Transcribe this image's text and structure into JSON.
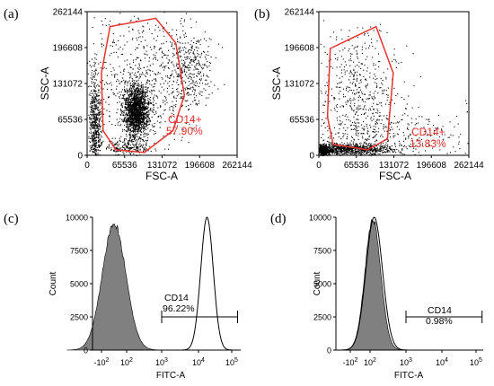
{
  "panel_labels": [
    "(a)",
    "(b)",
    "(c)",
    "(d)"
  ],
  "colors": {
    "gate": "#e8332f",
    "dots": "#000000",
    "fill": "#808080"
  },
  "chart_data": [
    {
      "type": "scatter",
      "panel": "(a)",
      "xlabel": "FSC-A",
      "ylabel": "SSC-A",
      "xlim": [
        0,
        262144
      ],
      "ylim": [
        0,
        262144
      ],
      "xticks": [
        "0",
        "65536",
        "131072",
        "196608",
        "262144"
      ],
      "yticks": [
        "0",
        "65536",
        "131072",
        "196608",
        "262144"
      ],
      "gate": {
        "name": "CD14+",
        "percent": "57.90%",
        "polygon": [
          [
            40000,
            235000
          ],
          [
            120000,
            250000
          ],
          [
            155000,
            205000
          ],
          [
            170000,
            110000
          ],
          [
            150000,
            45000
          ],
          [
            100000,
            5000
          ],
          [
            50000,
            10000
          ],
          [
            28000,
            45000
          ],
          [
            25000,
            150000
          ]
        ]
      },
      "clusters": [
        {
          "cx": 85000,
          "cy": 82000,
          "sx": 11000,
          "sy": 23000,
          "n": 1700
        },
        {
          "cx": 13000,
          "cy": 55000,
          "sx": 5000,
          "sy": 45000,
          "n": 600
        },
        {
          "cx": 175000,
          "cy": 155000,
          "sx": 20000,
          "sy": 35000,
          "n": 350
        },
        {
          "cx": 70000,
          "cy": 15000,
          "sx": 20000,
          "sy": 7000,
          "n": 200
        },
        {
          "cx": 95000,
          "cy": 140000,
          "sx": 50000,
          "sy": 70000,
          "n": 700
        }
      ]
    },
    {
      "type": "scatter",
      "panel": "(b)",
      "xlabel": "FSC-A",
      "ylabel": "SSC-A",
      "xlim": [
        0,
        262144
      ],
      "ylim": [
        0,
        262144
      ],
      "xticks": [
        "0",
        "65536",
        "131072",
        "196608",
        "262144"
      ],
      "yticks": [
        "0",
        "65536",
        "131072",
        "196608",
        "262144"
      ],
      "gate": {
        "name": "CD14+",
        "percent": "13.83%",
        "polygon": [
          [
            20000,
            195000
          ],
          [
            100000,
            235000
          ],
          [
            130000,
            150000
          ],
          [
            120000,
            30000
          ],
          [
            85000,
            10000
          ],
          [
            25000,
            20000
          ],
          [
            15000,
            70000
          ]
        ]
      },
      "clusters": [
        {
          "cx": 50000,
          "cy": 12000,
          "sx": 40000,
          "sy": 5000,
          "n": 900
        },
        {
          "cx": 8000,
          "cy": 10000,
          "sx": 5000,
          "sy": 5000,
          "n": 400
        },
        {
          "cx": 70000,
          "cy": 100000,
          "sx": 35000,
          "sy": 60000,
          "n": 600
        },
        {
          "cx": 150000,
          "cy": 40000,
          "sx": 60000,
          "sy": 25000,
          "n": 250
        }
      ]
    },
    {
      "type": "area",
      "panel": "(c)",
      "xlabel": "FITC-A",
      "ylabel": "Count",
      "ylim": [
        0,
        10000
      ],
      "yticks": [
        "0",
        "2500",
        "5000",
        "7500",
        "10000"
      ],
      "xticks": [
        "-10^2",
        "10^2",
        "10^3",
        "10^4",
        "10^5"
      ],
      "series": [
        {
          "fill": true,
          "peak_x": 10,
          "height": 9500,
          "width": 0.32
        },
        {
          "fill": false,
          "peak_x": 18000,
          "height": 10000,
          "width": 0.17
        }
      ],
      "marker": {
        "name": "CD14",
        "percent": "96.22%",
        "range": [
          1000,
          150000
        ],
        "level": 2500
      }
    },
    {
      "type": "area",
      "panel": "(d)",
      "xlabel": "FITC-A",
      "ylabel": "Count",
      "ylim": [
        0,
        10000
      ],
      "yticks": [
        "0",
        "2500",
        "5000",
        "7500",
        "10000"
      ],
      "xticks": [
        "-10^2",
        "10^2",
        "10^3",
        "10^4",
        "10^5"
      ],
      "series": [
        {
          "fill": true,
          "peak_x": 120,
          "height": 9800,
          "width": 0.22
        },
        {
          "fill": false,
          "peak_x": 130,
          "height": 10000,
          "width": 0.23
        }
      ],
      "marker": {
        "name": "CD14",
        "percent": "0.98%",
        "range": [
          1000,
          150000
        ],
        "level": 2500
      }
    }
  ]
}
